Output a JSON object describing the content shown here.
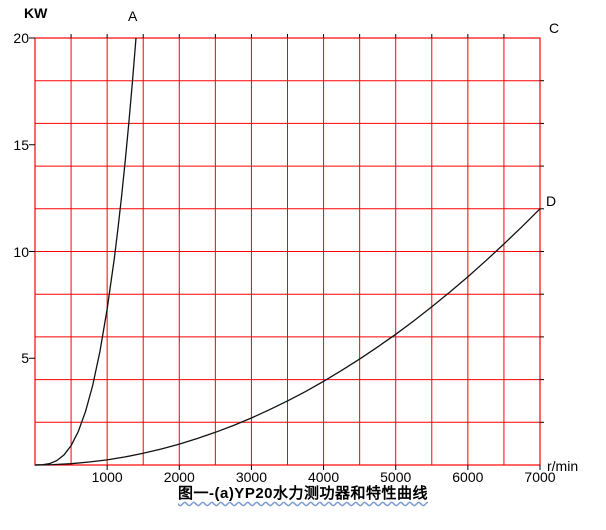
{
  "caption": "图一-(a)YP20水力测功器和特性曲线",
  "chart_data": {
    "type": "line",
    "title": "图一-(a)YP20水力测功器和特性曲线",
    "xlabel": "r/min",
    "ylabel": "KW",
    "xlim": [
      0,
      7000
    ],
    "ylim": [
      0,
      20
    ],
    "x_ticks": [
      1000,
      2000,
      3000,
      4000,
      5000,
      6000,
      7000
    ],
    "y_ticks": [
      20,
      15,
      10,
      5
    ],
    "grid": {
      "on": true,
      "x_step": 500,
      "y_step": 2,
      "color": "#ff0000"
    },
    "legend": "none",
    "curve_color": "#111111",
    "annotations": [
      {
        "text": "A"
      },
      {
        "text": "C"
      },
      {
        "text": "D"
      }
    ],
    "series": [
      {
        "name": "A",
        "points": [
          [
            0,
            0
          ],
          [
            100,
            0.01
          ],
          [
            200,
            0.06
          ],
          [
            300,
            0.2
          ],
          [
            400,
            0.47
          ],
          [
            500,
            0.91
          ],
          [
            600,
            1.57
          ],
          [
            700,
            2.5
          ],
          [
            800,
            3.73
          ],
          [
            900,
            5.31
          ],
          [
            1000,
            7.29
          ],
          [
            1100,
            9.7
          ],
          [
            1150,
            11.09
          ],
          [
            1200,
            12.59
          ],
          [
            1250,
            14.23
          ],
          [
            1300,
            16.01
          ],
          [
            1350,
            17.93
          ],
          [
            1400,
            20
          ]
        ]
      },
      {
        "name": "D",
        "points": [
          [
            0,
            0
          ],
          [
            250,
            0.02
          ],
          [
            500,
            0.06
          ],
          [
            750,
            0.14
          ],
          [
            1000,
            0.24
          ],
          [
            1250,
            0.38
          ],
          [
            1500,
            0.55
          ],
          [
            1750,
            0.75
          ],
          [
            2000,
            0.98
          ],
          [
            2250,
            1.24
          ],
          [
            2500,
            1.53
          ],
          [
            2750,
            1.85
          ],
          [
            3000,
            2.2
          ],
          [
            3250,
            2.59
          ],
          [
            3500,
            3.0
          ],
          [
            3750,
            3.44
          ],
          [
            4000,
            3.92
          ],
          [
            4250,
            4.43
          ],
          [
            4500,
            4.96
          ],
          [
            4750,
            5.53
          ],
          [
            5000,
            6.12
          ],
          [
            5250,
            6.75
          ],
          [
            5500,
            7.41
          ],
          [
            5750,
            8.1
          ],
          [
            6000,
            8.82
          ],
          [
            6250,
            9.57
          ],
          [
            6500,
            10.35
          ],
          [
            6750,
            11.16
          ],
          [
            7000,
            12
          ]
        ]
      }
    ]
  }
}
